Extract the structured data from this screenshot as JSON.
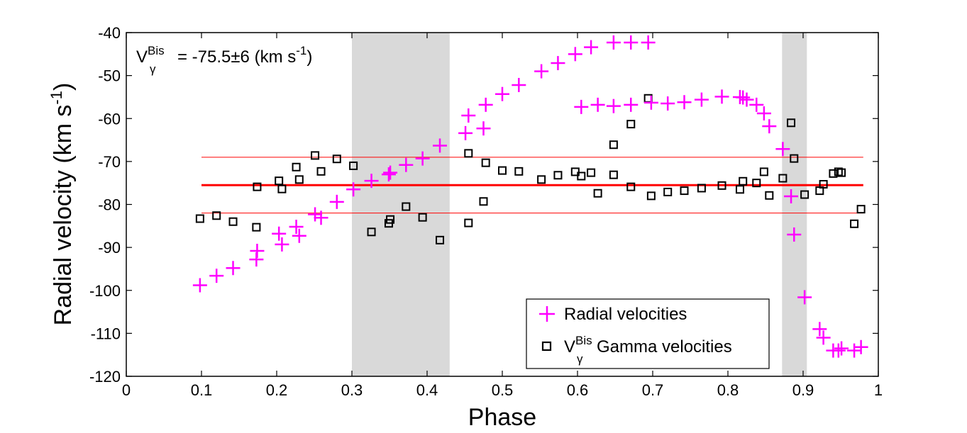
{
  "chart_data": {
    "type": "scatter",
    "xlabel": "Phase",
    "ylabel": "Radial velocity (km s",
    "ylabel_sup": "-1",
    "ylabel_close": ")",
    "xlim": [
      0,
      1
    ],
    "ylim": [
      -120,
      -40
    ],
    "xticks": [
      0,
      0.1,
      0.2,
      0.3,
      0.4,
      0.5,
      0.6,
      0.7,
      0.8,
      0.9,
      1
    ],
    "xtick_labels": [
      "0",
      "0.1",
      "0.2",
      "0.3",
      "0.4",
      "0.5",
      "0.6",
      "0.7",
      "0.8",
      "0.9",
      "1"
    ],
    "yticks": [
      -120,
      -110,
      -100,
      -90,
      -80,
      -70,
      -60,
      -50,
      -40
    ],
    "ytick_labels": [
      "-120",
      "-110",
      "-100",
      "-90",
      "-80",
      "-70",
      "-60",
      "-50",
      "-40"
    ],
    "shaded_regions": [
      [
        0.3,
        0.43
      ],
      [
        0.872,
        0.905
      ]
    ],
    "gamma_line": -75.5,
    "gamma_band": [
      -69,
      -82
    ],
    "annotation": {
      "v": "V",
      "sup": "Bis",
      "sub": "γ",
      "text": "= -75.5±6 (km s",
      "unit_sup": "-1",
      "close": ")"
    },
    "colors": {
      "radial": "#ff00ff",
      "gamma": "#000000",
      "line": "#ff0000",
      "shade": "#d9d9d9"
    },
    "legend": {
      "position": "lower-right",
      "entries": [
        {
          "label": "Radial velocities"
        },
        {
          "v": "V",
          "sup": "Bis",
          "sub": "γ",
          "label": "Gamma velocities"
        }
      ]
    },
    "series": [
      {
        "name": "Radial velocities",
        "marker": "plus",
        "points": [
          [
            0.098,
            -98.8
          ],
          [
            0.12,
            -96.6
          ],
          [
            0.142,
            -94.8
          ],
          [
            0.173,
            -92.8
          ],
          [
            0.174,
            -90.8
          ],
          [
            0.203,
            -86.8
          ],
          [
            0.207,
            -89.3
          ],
          [
            0.226,
            -85.2
          ],
          [
            0.23,
            -87.3
          ],
          [
            0.251,
            -82.3
          ],
          [
            0.259,
            -83.1
          ],
          [
            0.28,
            -79.4
          ],
          [
            0.302,
            -76.5
          ],
          [
            0.326,
            -74.5
          ],
          [
            0.349,
            -73.0
          ],
          [
            0.351,
            -72.6
          ],
          [
            0.372,
            -70.8
          ],
          [
            0.394,
            -69.3
          ],
          [
            0.417,
            -66.3
          ],
          [
            0.451,
            -63.4
          ],
          [
            0.455,
            -59.3
          ],
          [
            0.475,
            -62.3
          ],
          [
            0.478,
            -56.8
          ],
          [
            0.5,
            -54.3
          ],
          [
            0.522,
            -52.2
          ],
          [
            0.552,
            -49.0
          ],
          [
            0.574,
            -47.1
          ],
          [
            0.597,
            -45.0
          ],
          [
            0.618,
            -43.4
          ],
          [
            0.648,
            -42.3
          ],
          [
            0.671,
            -42.3
          ],
          [
            0.694,
            -42.3
          ],
          [
            0.605,
            -57.3
          ],
          [
            0.627,
            -56.8
          ],
          [
            0.648,
            -57.1
          ],
          [
            0.671,
            -56.8
          ],
          [
            0.698,
            -56.3
          ],
          [
            0.72,
            -56.5
          ],
          [
            0.742,
            -56.2
          ],
          [
            0.765,
            -55.6
          ],
          [
            0.792,
            -54.9
          ],
          [
            0.816,
            -55.0
          ],
          [
            0.82,
            -55.1
          ],
          [
            0.825,
            -55.6
          ],
          [
            0.838,
            -56.8
          ],
          [
            0.848,
            -58.8
          ],
          [
            0.855,
            -61.8
          ],
          [
            0.873,
            -67.1
          ],
          [
            0.884,
            -78.1
          ],
          [
            0.888,
            -87.0
          ],
          [
            0.902,
            -101.6
          ],
          [
            0.922,
            -109.0
          ],
          [
            0.927,
            -111.0
          ],
          [
            0.94,
            -114.0
          ],
          [
            0.947,
            -114.0
          ],
          [
            0.951,
            -113.5
          ],
          [
            0.968,
            -114.0
          ],
          [
            0.977,
            -113.2
          ]
        ]
      },
      {
        "name": "Gamma velocities",
        "marker": "square",
        "points": [
          [
            0.098,
            -83.3
          ],
          [
            0.12,
            -82.6
          ],
          [
            0.142,
            -84.0
          ],
          [
            0.173,
            -85.3
          ],
          [
            0.174,
            -75.9
          ],
          [
            0.203,
            -74.5
          ],
          [
            0.207,
            -76.4
          ],
          [
            0.226,
            -71.3
          ],
          [
            0.23,
            -74.2
          ],
          [
            0.251,
            -68.6
          ],
          [
            0.259,
            -72.3
          ],
          [
            0.28,
            -69.4
          ],
          [
            0.302,
            -71.0
          ],
          [
            0.326,
            -86.4
          ],
          [
            0.349,
            -84.4
          ],
          [
            0.351,
            -83.5
          ],
          [
            0.372,
            -80.5
          ],
          [
            0.394,
            -83.0
          ],
          [
            0.417,
            -88.3
          ],
          [
            0.455,
            -68.1
          ],
          [
            0.455,
            -84.3
          ],
          [
            0.478,
            -70.3
          ],
          [
            0.475,
            -79.3
          ],
          [
            0.5,
            -72.1
          ],
          [
            0.522,
            -72.3
          ],
          [
            0.552,
            -74.2
          ],
          [
            0.574,
            -73.2
          ],
          [
            0.597,
            -72.4
          ],
          [
            0.605,
            -73.4
          ],
          [
            0.618,
            -72.6
          ],
          [
            0.627,
            -77.4
          ],
          [
            0.648,
            -66.1
          ],
          [
            0.648,
            -73.1
          ],
          [
            0.671,
            -61.3
          ],
          [
            0.671,
            -75.9
          ],
          [
            0.694,
            -55.3
          ],
          [
            0.698,
            -78.0
          ],
          [
            0.72,
            -77.1
          ],
          [
            0.742,
            -76.8
          ],
          [
            0.765,
            -76.2
          ],
          [
            0.792,
            -75.6
          ],
          [
            0.816,
            -76.5
          ],
          [
            0.82,
            -74.6
          ],
          [
            0.838,
            -75.0
          ],
          [
            0.848,
            -72.4
          ],
          [
            0.855,
            -77.9
          ],
          [
            0.873,
            -73.9
          ],
          [
            0.884,
            -61.0
          ],
          [
            0.888,
            -69.3
          ],
          [
            0.902,
            -77.7
          ],
          [
            0.922,
            -76.8
          ],
          [
            0.927,
            -75.3
          ],
          [
            0.94,
            -72.8
          ],
          [
            0.947,
            -72.4
          ],
          [
            0.951,
            -72.6
          ],
          [
            0.968,
            -84.5
          ],
          [
            0.977,
            -81.1
          ]
        ]
      }
    ]
  }
}
